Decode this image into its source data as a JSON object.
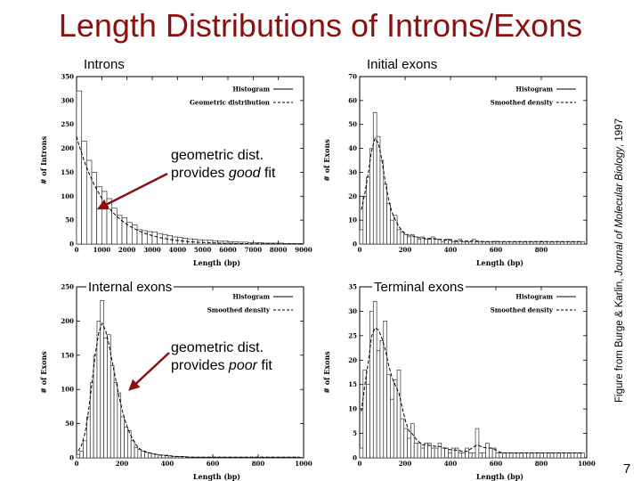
{
  "title": "Length Distributions of Introns/Exons",
  "credit_prefix": "Figure from Burge & Karlin, ",
  "credit_journal": "Journal of Molecular Biology",
  "credit_suffix": ", 1997",
  "page_number": "7",
  "annotations": {
    "good_line1": "geometric dist.",
    "good_line2_pre": "provides ",
    "good_line2_em": "good",
    "good_line2_post": " fit",
    "poor_line1": "geometric dist.",
    "poor_line2_pre": "provides ",
    "poor_line2_em": "poor",
    "poor_line2_post": " fit"
  },
  "colors": {
    "title": "#8b1010",
    "arrow": "#8b1010"
  },
  "chart_data": [
    {
      "type": "bar",
      "panel_label": "Introns",
      "xlabel": "Length (bp)",
      "ylabel": "# of Introns",
      "xlim": [
        0,
        9000
      ],
      "ylim": [
        0,
        350
      ],
      "xticks": [
        0,
        1000,
        2000,
        3000,
        4000,
        5000,
        6000,
        7000,
        8000,
        9000
      ],
      "xtick_labels": [
        "0",
        "1000",
        "2000",
        "3000",
        "4000",
        "5000",
        "6000",
        "7000",
        "8000",
        "9000"
      ],
      "yticks": [
        0,
        50,
        100,
        150,
        200,
        250,
        300,
        350
      ],
      "bin_width": 200,
      "values": [
        320,
        215,
        175,
        150,
        120,
        110,
        95,
        75,
        60,
        55,
        45,
        40,
        30,
        28,
        26,
        25,
        22,
        20,
        18,
        15,
        14,
        12,
        11,
        10,
        9,
        8,
        8,
        7,
        6,
        6,
        5,
        5,
        4,
        4,
        3,
        3,
        3,
        2,
        2,
        2,
        2,
        1,
        1,
        1,
        1
      ],
      "series": [
        {
          "name": "Histogram",
          "style": "solid"
        },
        {
          "name": "Geometric distribution",
          "style": "dashed",
          "kind": "geometric",
          "scale": 225,
          "rate": 0.00085
        }
      ]
    },
    {
      "type": "bar",
      "panel_label": "Initial exons",
      "xlabel": "Length (bp)",
      "ylabel": "# of Exons",
      "xlim": [
        0,
        1000
      ],
      "ylim": [
        0,
        70
      ],
      "xticks": [
        0,
        200,
        400,
        600,
        800
      ],
      "xtick_labels": [
        "0",
        "200",
        "400",
        "600",
        "800"
      ],
      "yticks": [
        0,
        10,
        20,
        30,
        40,
        50,
        60,
        70
      ],
      "bin_width": 15,
      "values": [
        6,
        20,
        28,
        40,
        55,
        45,
        35,
        25,
        17,
        10,
        12,
        6,
        5,
        4,
        3,
        4,
        3,
        2,
        3,
        2,
        2,
        3,
        2,
        2,
        1,
        2,
        2,
        1,
        1,
        2,
        1,
        1,
        1,
        2,
        1,
        1,
        1,
        1,
        1,
        1,
        1,
        1,
        1,
        1,
        1,
        1,
        1,
        1,
        1,
        1,
        1,
        1,
        1,
        1,
        1,
        1,
        1,
        1,
        1,
        1,
        1,
        1,
        1,
        1,
        1,
        1
      ],
      "series": [
        {
          "name": "Histogram",
          "style": "solid"
        },
        {
          "name": "Smoothed density",
          "style": "dashed",
          "kind": "smooth"
        }
      ]
    },
    {
      "type": "bar",
      "panel_label": "Internal exons",
      "xlabel": "Length (bp)",
      "ylabel": "# of Exons",
      "xlim": [
        0,
        1000
      ],
      "ylim": [
        0,
        250
      ],
      "xticks": [
        0,
        200,
        400,
        600,
        800,
        1000
      ],
      "xtick_labels": [
        "0",
        "200",
        "400",
        "600",
        "800",
        "1000"
      ],
      "yticks": [
        0,
        50,
        100,
        150,
        200,
        250
      ],
      "bin_width": 15,
      "values": [
        5,
        10,
        25,
        60,
        110,
        150,
        200,
        230,
        175,
        180,
        135,
        110,
        95,
        60,
        45,
        40,
        25,
        15,
        12,
        10,
        8,
        7,
        6,
        5,
        4,
        4,
        3,
        3,
        2,
        2,
        2,
        2,
        1,
        1,
        1,
        1,
        1,
        1,
        1,
        1,
        1,
        1,
        1,
        1,
        1,
        1,
        1,
        1,
        1,
        1,
        1,
        1,
        1,
        1,
        1,
        1,
        1,
        1,
        1,
        1,
        1,
        1,
        1,
        1,
        1,
        1
      ],
      "series": [
        {
          "name": "Histogram",
          "style": "solid"
        },
        {
          "name": "Smoothed density",
          "style": "dashed",
          "kind": "smooth"
        }
      ]
    },
    {
      "type": "bar",
      "panel_label": "Terminal exons",
      "xlabel": "Length (bp)",
      "ylabel": "# of Exons",
      "xlim": [
        0,
        1000
      ],
      "ylim": [
        0,
        35
      ],
      "xticks": [
        0,
        200,
        400,
        600,
        800,
        1000
      ],
      "xtick_labels": [
        "0",
        "200",
        "400",
        "600",
        "800",
        "1000"
      ],
      "yticks": [
        0,
        5,
        10,
        15,
        20,
        25,
        30,
        35
      ],
      "bin_width": 15,
      "values": [
        2,
        18,
        15,
        30,
        32,
        22,
        24,
        28,
        17,
        12,
        16,
        18,
        8,
        6,
        4,
        7,
        3,
        3,
        2,
        3,
        3,
        2,
        2,
        3,
        2,
        2,
        1,
        2,
        2,
        1,
        1,
        2,
        1,
        1,
        6,
        1,
        1,
        3,
        2,
        2,
        1,
        1,
        1,
        1,
        1,
        1,
        1,
        1,
        1,
        1,
        1,
        1,
        1,
        1,
        1,
        1,
        1,
        1,
        1,
        1,
        1,
        1,
        1,
        1,
        1,
        1
      ],
      "series": [
        {
          "name": "Histogram",
          "style": "solid"
        },
        {
          "name": "Smoothed density",
          "style": "dashed",
          "kind": "smooth"
        }
      ]
    }
  ]
}
